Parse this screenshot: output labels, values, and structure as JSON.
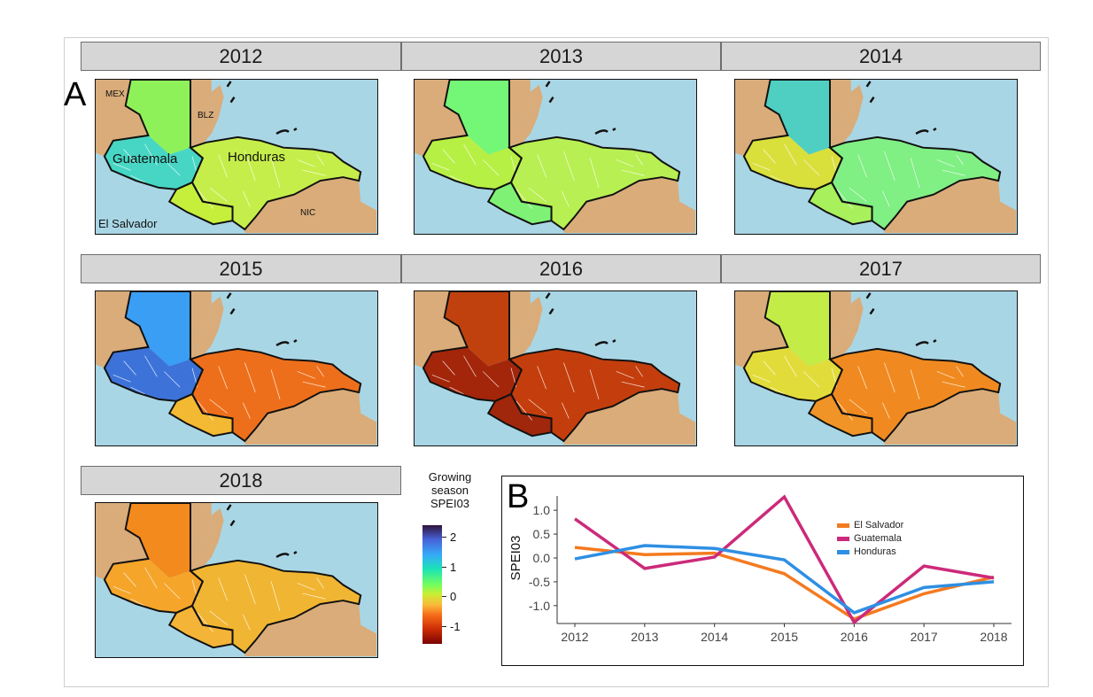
{
  "figure": {
    "panel_a_label": "A",
    "panel_b_label": "B",
    "years": [
      "2012",
      "2013",
      "2014",
      "2015",
      "2016",
      "2017",
      "2018"
    ],
    "map_annotations": {
      "mex": "MEX",
      "blz": "BLZ",
      "guatemala": "Guatemala",
      "honduras": "Honduras",
      "nic": "NIC",
      "el_salvador": "El Salvador"
    },
    "country_colors": {
      "2012": {
        "guatemala_north": "#8ef15a",
        "guatemala_south": "#47d6c4",
        "el_salvador": "#c6ef3c",
        "honduras": "#c6ee4a"
      },
      "2013": {
        "guatemala_north": "#74f676",
        "guatemala_south": "#b7f045",
        "el_salvador": "#7ff276",
        "honduras": "#b8ef52"
      },
      "2014": {
        "guatemala_north": "#4fcfc2",
        "guatemala_south": "#d9e03c",
        "el_salvador": "#a8f05c",
        "honduras": "#80ef84"
      },
      "2015": {
        "guatemala_north": "#3a9ef5",
        "guatemala_south": "#3d73d9",
        "el_salvador": "#f3b932",
        "honduras": "#ee6f1b"
      },
      "2016": {
        "guatemala_north": "#c1410e",
        "guatemala_south": "#a3260b",
        "el_salvador": "#a0270b",
        "honduras": "#c43e0d"
      },
      "2017": {
        "guatemala_north": "#c4ec46",
        "guatemala_south": "#e2dc3b",
        "el_salvador": "#f09427",
        "honduras": "#f08a20"
      },
      "2018": {
        "guatemala_north": "#f38a1d",
        "guatemala_south": "#f5a52a",
        "el_salvador": "#f4b437",
        "honduras": "#f0b532"
      }
    },
    "colors": {
      "ocean": "#a9d6e5",
      "land": "#d9ac7a"
    }
  },
  "legend": {
    "title_lines": [
      "Growing",
      "season",
      "SPEI03"
    ],
    "ticks": [
      "2",
      "1",
      "0",
      "-1"
    ],
    "tick_values": [
      2,
      1,
      0,
      -1
    ],
    "range": [
      2.4,
      -1.6
    ]
  },
  "chart_data": {
    "type": "line",
    "x": [
      2012,
      2013,
      2014,
      2015,
      2016,
      2017,
      2018
    ],
    "xlabel": "",
    "ylabel": "SPEI03",
    "yticks": [
      "1.0",
      "0.5",
      "0.0",
      "-0.5",
      "-1.0"
    ],
    "ytick_values": [
      1.0,
      0.5,
      0.0,
      -0.5,
      -1.0
    ],
    "ylim": [
      -1.3,
      1.3
    ],
    "legend_position": "top-right",
    "series": [
      {
        "name": "El Salvador",
        "color": "#f47a1f",
        "values": [
          0.22,
          0.07,
          0.1,
          -0.33,
          -1.28,
          -0.75,
          -0.4
        ]
      },
      {
        "name": "Guatemala",
        "color": "#cc2a7a",
        "values": [
          0.82,
          -0.22,
          0.02,
          1.28,
          -1.35,
          -0.17,
          -0.42
        ]
      },
      {
        "name": "Honduras",
        "color": "#2e8fe3",
        "values": [
          -0.02,
          0.26,
          0.2,
          -0.04,
          -1.15,
          -0.62,
          -0.5
        ]
      }
    ]
  }
}
